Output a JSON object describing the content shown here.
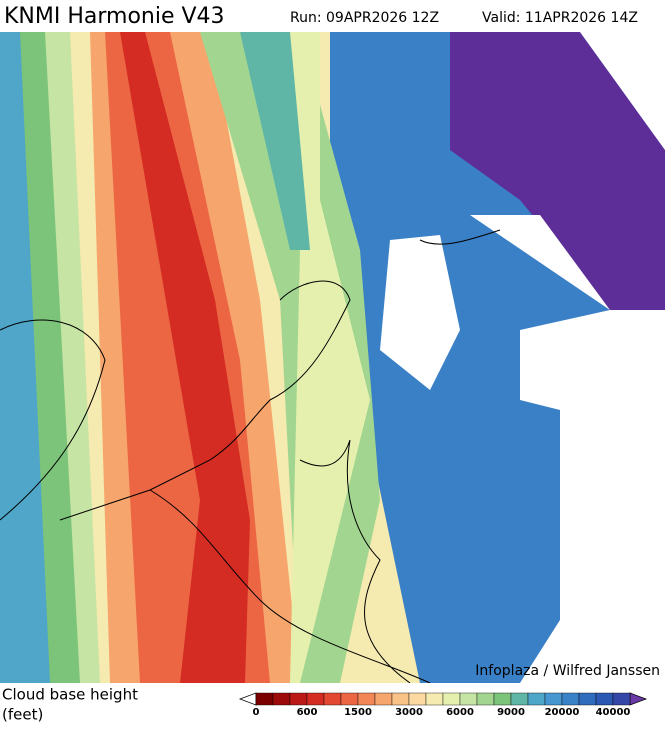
{
  "header": {
    "title": "KNMI Harmonie V43",
    "run": "Run: 09APR2026 12Z",
    "valid": "Valid: 11APR2026 14Z"
  },
  "credit": "Infoplaza / Wilfred Janssen",
  "legend": {
    "label_line1": "Cloud base height",
    "label_line2": "(feet)",
    "colorbar": {
      "ticks": [
        0,
        600,
        1500,
        3000,
        6000,
        9000,
        20000,
        40000
      ],
      "colors": [
        "#7a0000",
        "#9c0a0a",
        "#bb1818",
        "#d42c22",
        "#e24832",
        "#ec6644",
        "#f28656",
        "#f6a66c",
        "#f9c286",
        "#fbd9a0",
        "#f5eab0",
        "#e6f0ae",
        "#c6e4a4",
        "#a2d690",
        "#7cc47a",
        "#5fb6a6",
        "#4ea6c8",
        "#4696d0",
        "#3a82c8",
        "#306cbe",
        "#2a58b2",
        "#3446a8"
      ],
      "arrow_colors": [
        "#ffffff",
        "#6a3aa6"
      ]
    }
  }
}
